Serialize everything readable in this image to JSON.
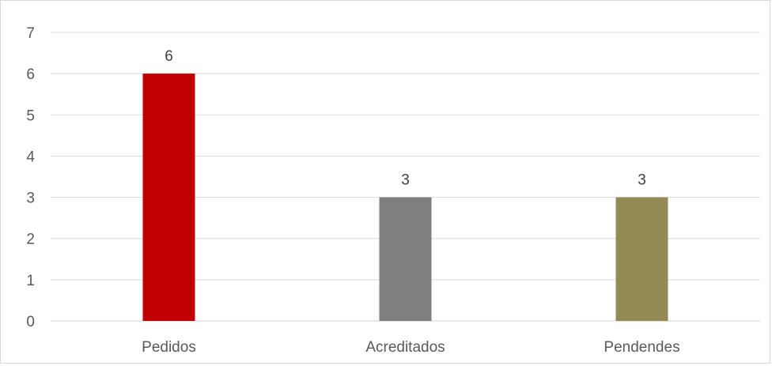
{
  "chart_data": {
    "type": "bar",
    "categories": [
      "Pedidos",
      "Acreditados",
      "Pendendes"
    ],
    "values": [
      6,
      3,
      3
    ],
    "data_labels": [
      "6",
      "3",
      "3"
    ],
    "colors": [
      "#c00000",
      "#7f7f7f",
      "#948a54"
    ],
    "title": "",
    "xlabel": "",
    "ylabel": "",
    "ylim": [
      0,
      7
    ],
    "yticks": [
      "0",
      "1",
      "2",
      "3",
      "4",
      "5",
      "6",
      "7"
    ],
    "grid": true,
    "legend": "none"
  }
}
